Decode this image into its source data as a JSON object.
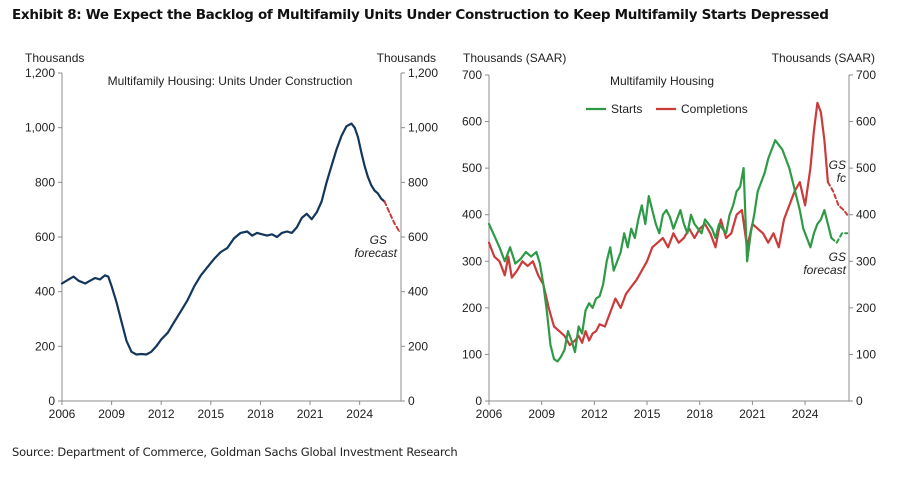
{
  "title": "Exhibit 8: We Expect the Backlog of Multifamily Units Under Construction to Keep Multifamily Starts Depressed",
  "source": "Source: Department of Commerce, Goldman Sachs Global Investment Research",
  "colors": {
    "navy": "#13365c",
    "green": "#2e9a46",
    "red": "#cc3a3a",
    "axis": "#8c8c8c"
  },
  "chart_data": [
    {
      "type": "line",
      "title": "Multifamily Housing: Units Under Construction",
      "ylabel_left": "Thousands",
      "ylabel_right": "Thousands",
      "xlim": [
        2006,
        2026.5
      ],
      "ylim": [
        0,
        1200
      ],
      "xticks": [
        2006,
        2009,
        2012,
        2015,
        2018,
        2021,
        2024
      ],
      "yticks": [
        0,
        200,
        400,
        600,
        800,
        1000,
        1200
      ],
      "ytick_labels": [
        "0",
        "200",
        "400",
        "600",
        "800",
        "1,000",
        "1,200"
      ],
      "annotation": {
        "line1": "GS",
        "line2": "forecast"
      },
      "series": [
        {
          "type": "actual",
          "x": [
            2006.0,
            2006.4,
            2006.7,
            2007.0,
            2007.4,
            2007.7,
            2008.0,
            2008.3,
            2008.6,
            2008.8,
            2009.0,
            2009.3,
            2009.6,
            2009.9,
            2010.2,
            2010.5,
            2010.8,
            2011.1,
            2011.4,
            2011.7,
            2012.0,
            2012.4,
            2012.8,
            2013.2,
            2013.6,
            2014.0,
            2014.4,
            2014.8,
            2015.2,
            2015.6,
            2016.0,
            2016.4,
            2016.8,
            2017.2,
            2017.5,
            2017.8,
            2018.1,
            2018.4,
            2018.7,
            2019.0,
            2019.3,
            2019.6,
            2019.9,
            2020.2,
            2020.5,
            2020.8,
            2021.1,
            2021.4,
            2021.7,
            2022.0,
            2022.3,
            2022.6,
            2022.9,
            2023.2,
            2023.5,
            2023.7,
            2023.9,
            2024.1,
            2024.3,
            2024.5,
            2024.7,
            2024.9,
            2025.1,
            2025.3,
            2025.5
          ],
          "y": [
            430,
            445,
            455,
            440,
            430,
            440,
            450,
            445,
            460,
            455,
            420,
            360,
            290,
            220,
            180,
            170,
            172,
            170,
            180,
            200,
            225,
            250,
            290,
            330,
            370,
            420,
            460,
            490,
            520,
            545,
            560,
            595,
            615,
            620,
            605,
            615,
            610,
            605,
            610,
            600,
            615,
            620,
            615,
            635,
            670,
            685,
            665,
            690,
            730,
            800,
            860,
            920,
            970,
            1005,
            1015,
            1000,
            965,
            910,
            860,
            820,
            790,
            770,
            760,
            740,
            730
          ]
        },
        {
          "type": "forecast",
          "x": [
            2025.5,
            2025.8,
            2026.1,
            2026.4
          ],
          "y": [
            730,
            690,
            650,
            620
          ]
        }
      ]
    },
    {
      "type": "line",
      "title": "Multifamily Housing",
      "ylabel_left": "Thousands  (SAAR)",
      "ylabel_right": "Thousands  (SAAR)",
      "xlim": [
        2006,
        2026.5
      ],
      "ylim": [
        0,
        700
      ],
      "xticks": [
        2006,
        2009,
        2012,
        2015,
        2018,
        2021,
        2024
      ],
      "yticks": [
        0,
        100,
        200,
        300,
        400,
        500,
        600,
        700
      ],
      "legend": "top-center",
      "annotations": {
        "completions": {
          "line1": "GS",
          "line2": "fc"
        },
        "starts": {
          "line1": "GS",
          "line2": "forecast"
        }
      },
      "series": [
        {
          "name": "Starts",
          "x": [
            2006.0,
            2006.3,
            2006.6,
            2006.9,
            2007.2,
            2007.5,
            2007.8,
            2008.1,
            2008.4,
            2008.7,
            2008.9,
            2009.1,
            2009.3,
            2009.5,
            2009.7,
            2009.9,
            2010.1,
            2010.3,
            2010.5,
            2010.7,
            2010.9,
            2011.1,
            2011.3,
            2011.5,
            2011.7,
            2011.9,
            2012.1,
            2012.3,
            2012.5,
            2012.7,
            2012.9,
            2013.1,
            2013.3,
            2013.5,
            2013.7,
            2013.9,
            2014.1,
            2014.3,
            2014.5,
            2014.7,
            2014.9,
            2015.1,
            2015.3,
            2015.5,
            2015.7,
            2015.9,
            2016.1,
            2016.3,
            2016.5,
            2016.7,
            2016.9,
            2017.1,
            2017.3,
            2017.5,
            2017.7,
            2017.9,
            2018.1,
            2018.3,
            2018.5,
            2018.7,
            2018.9,
            2019.1,
            2019.3,
            2019.5,
            2019.7,
            2019.9,
            2020.1,
            2020.3,
            2020.5,
            2020.7,
            2020.9,
            2021.1,
            2021.3,
            2021.5,
            2021.7,
            2021.9,
            2022.1,
            2022.3,
            2022.5,
            2022.7,
            2022.9,
            2023.1,
            2023.3,
            2023.5,
            2023.7,
            2023.9,
            2024.1,
            2024.3,
            2024.5,
            2024.7,
            2024.9,
            2025.1,
            2025.3,
            2025.5
          ],
          "y": [
            380,
            355,
            330,
            300,
            330,
            295,
            305,
            320,
            310,
            320,
            295,
            250,
            190,
            120,
            90,
            85,
            95,
            110,
            150,
            130,
            105,
            160,
            145,
            195,
            210,
            200,
            220,
            225,
            250,
            300,
            330,
            280,
            300,
            320,
            360,
            330,
            370,
            350,
            390,
            420,
            380,
            440,
            410,
            380,
            360,
            400,
            410,
            395,
            370,
            390,
            410,
            380,
            360,
            400,
            380,
            370,
            360,
            390,
            380,
            370,
            350,
            380,
            370,
            360,
            400,
            420,
            450,
            460,
            500,
            300,
            360,
            400,
            450,
            470,
            490,
            520,
            540,
            560,
            550,
            540,
            520,
            500,
            470,
            440,
            410,
            370,
            350,
            330,
            360,
            380,
            390,
            410,
            380,
            350
          ]
        },
        {
          "name": "Starts forecast",
          "x": [
            2025.5,
            2025.8,
            2026.1,
            2026.4
          ],
          "y": [
            350,
            340,
            360,
            360
          ]
        },
        {
          "name": "Completions",
          "x": [
            2006.0,
            2006.3,
            2006.6,
            2006.9,
            2007.1,
            2007.3,
            2007.6,
            2007.9,
            2008.2,
            2008.5,
            2008.8,
            2009.1,
            2009.4,
            2009.7,
            2010.0,
            2010.3,
            2010.6,
            2010.9,
            2011.1,
            2011.3,
            2011.5,
            2011.7,
            2011.9,
            2012.1,
            2012.3,
            2012.6,
            2012.9,
            2013.2,
            2013.5,
            2013.8,
            2014.1,
            2014.4,
            2014.7,
            2015.0,
            2015.3,
            2015.6,
            2015.9,
            2016.2,
            2016.5,
            2016.8,
            2017.1,
            2017.4,
            2017.7,
            2018.0,
            2018.3,
            2018.6,
            2018.9,
            2019.2,
            2019.5,
            2019.8,
            2020.1,
            2020.4,
            2020.7,
            2021.0,
            2021.3,
            2021.6,
            2021.9,
            2022.2,
            2022.5,
            2022.8,
            2023.1,
            2023.4,
            2023.7,
            2024.0,
            2024.3,
            2024.5,
            2024.7,
            2024.9,
            2025.1,
            2025.3
          ],
          "y": [
            340,
            310,
            300,
            270,
            310,
            265,
            280,
            300,
            290,
            300,
            270,
            250,
            200,
            160,
            150,
            140,
            120,
            130,
            140,
            125,
            150,
            130,
            145,
            150,
            165,
            160,
            190,
            220,
            200,
            230,
            245,
            260,
            280,
            300,
            330,
            340,
            350,
            330,
            360,
            340,
            350,
            370,
            350,
            370,
            380,
            360,
            330,
            390,
            350,
            360,
            400,
            410,
            330,
            380,
            370,
            360,
            340,
            360,
            330,
            390,
            420,
            450,
            470,
            420,
            500,
            580,
            640,
            620,
            560,
            470
          ]
        },
        {
          "name": "Completions forecast",
          "x": [
            2025.3,
            2025.6,
            2025.9,
            2026.2,
            2026.4
          ],
          "y": [
            470,
            450,
            420,
            410,
            400
          ]
        }
      ]
    }
  ]
}
